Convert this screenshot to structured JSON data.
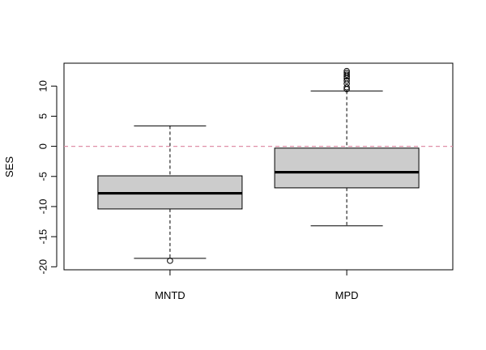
{
  "chart_data": {
    "type": "boxplot",
    "title": "",
    "xlabel": "",
    "ylabel": "SES",
    "ylim": [
      -20.5,
      13.8
    ],
    "yticks": [
      -20,
      -15,
      -10,
      -5,
      0,
      5,
      10
    ],
    "reference_line": {
      "y": 0,
      "style": "dashed",
      "color": "#DF8FA8"
    },
    "box_fill": "#CCCCCC",
    "categories": [
      "MNTD",
      "MPD"
    ],
    "series": [
      {
        "category": "MNTD",
        "whisker_low": -18.6,
        "q1": -10.4,
        "median": -7.8,
        "q3": -4.9,
        "whisker_high": 3.4,
        "outliers": [
          -19.0
        ]
      },
      {
        "category": "MPD",
        "whisker_low": -13.2,
        "q1": -6.9,
        "median": -4.3,
        "q3": -0.3,
        "whisker_high": 9.2,
        "outliers": [
          9.5,
          9.8,
          10.4,
          10.9,
          11.3,
          11.6,
          11.9,
          12.2,
          12.5
        ]
      }
    ]
  }
}
